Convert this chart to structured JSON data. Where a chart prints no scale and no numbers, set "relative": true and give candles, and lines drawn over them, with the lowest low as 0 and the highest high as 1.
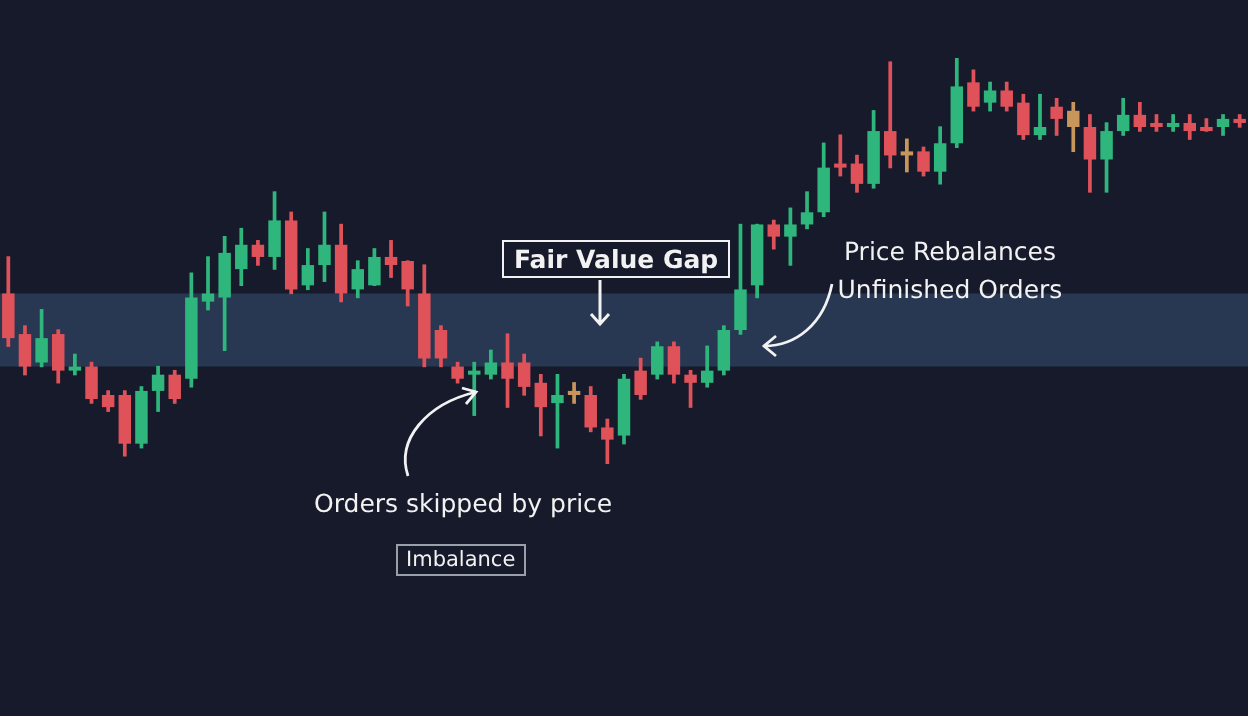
{
  "chart_data": {
    "type": "candlestick",
    "relative": true,
    "categories": [
      null,
      null,
      null,
      null,
      null,
      null,
      null,
      null,
      null,
      null,
      null,
      null,
      null,
      null,
      null,
      null,
      null,
      null,
      null,
      null,
      null,
      null,
      null,
      null,
      null,
      null,
      null,
      null,
      null,
      null,
      null,
      null,
      null,
      null,
      null,
      null,
      null,
      null,
      null,
      null,
      null,
      null,
      null,
      null,
      null,
      null,
      null,
      null,
      null,
      null,
      null,
      null,
      null,
      null,
      null,
      null,
      null,
      null,
      null,
      null,
      null,
      null,
      null,
      null,
      null,
      null,
      null,
      null,
      null,
      null,
      null,
      null,
      null,
      null,
      null
    ],
    "ohlc": [
      [
        0.42,
        0.51,
        0.29,
        0.31
      ],
      [
        0.32,
        0.34,
        0.22,
        0.24
      ],
      [
        0.25,
        0.38,
        0.24,
        0.31
      ],
      [
        0.32,
        0.33,
        0.2,
        0.23
      ],
      [
        0.23,
        0.27,
        0.22,
        0.24
      ],
      [
        0.24,
        0.25,
        0.15,
        0.16
      ],
      [
        0.17,
        0.18,
        0.13,
        0.14
      ],
      [
        0.17,
        0.18,
        0.02,
        0.05
      ],
      [
        0.05,
        0.19,
        0.04,
        0.18
      ],
      [
        0.18,
        0.24,
        0.13,
        0.22
      ],
      [
        0.22,
        0.23,
        0.15,
        0.16
      ],
      [
        0.21,
        0.47,
        0.19,
        0.41
      ],
      [
        0.4,
        0.51,
        0.38,
        0.42
      ],
      [
        0.41,
        0.56,
        0.28,
        0.52
      ],
      [
        0.48,
        0.58,
        0.44,
        0.54
      ],
      [
        0.54,
        0.55,
        0.49,
        0.51
      ],
      [
        0.51,
        0.67,
        0.48,
        0.6
      ],
      [
        0.6,
        0.62,
        0.42,
        0.43
      ],
      [
        0.44,
        0.53,
        0.43,
        0.49
      ],
      [
        0.49,
        0.62,
        0.45,
        0.54
      ],
      [
        0.54,
        0.59,
        0.4,
        0.42
      ],
      [
        0.43,
        0.5,
        0.41,
        0.48
      ],
      [
        0.44,
        0.53,
        0.44,
        0.51
      ],
      [
        0.51,
        0.55,
        0.46,
        0.49
      ],
      [
        0.5,
        0.5,
        0.39,
        0.43
      ],
      [
        0.42,
        0.49,
        0.24,
        0.26
      ],
      [
        0.33,
        0.34,
        0.24,
        0.26
      ],
      [
        0.24,
        0.25,
        0.2,
        0.21
      ],
      [
        0.22,
        0.25,
        0.12,
        0.23
      ],
      [
        0.22,
        0.28,
        0.21,
        0.25
      ],
      [
        0.25,
        0.32,
        0.14,
        0.21
      ],
      [
        0.25,
        0.27,
        0.17,
        0.19
      ],
      [
        0.2,
        0.22,
        0.07,
        0.14
      ],
      [
        0.15,
        0.22,
        0.04,
        0.17
      ],
      [
        0.18,
        0.2,
        0.15,
        0.17
      ],
      [
        0.17,
        0.19,
        0.08,
        0.09
      ],
      [
        0.09,
        0.11,
        0,
        0.06
      ],
      [
        0.07,
        0.22,
        0.05,
        0.21
      ],
      [
        0.23,
        0.26,
        0.16,
        0.17
      ],
      [
        0.22,
        0.3,
        0.21,
        0.29
      ],
      [
        0.29,
        0.3,
        0.2,
        0.22
      ],
      [
        0.22,
        0.23,
        0.14,
        0.2
      ],
      [
        0.2,
        0.29,
        0.19,
        0.23
      ],
      [
        0.23,
        0.34,
        0.22,
        0.33
      ],
      [
        0.33,
        0.59,
        0.32,
        0.43
      ],
      [
        0.44,
        0.59,
        0.41,
        0.59
      ],
      [
        0.59,
        0.6,
        0.53,
        0.56
      ],
      [
        0.56,
        0.63,
        0.49,
        0.59
      ],
      [
        0.59,
        0.67,
        0.58,
        0.62
      ],
      [
        0.62,
        0.79,
        0.61,
        0.73
      ],
      [
        0.74,
        0.81,
        0.71,
        0.73
      ],
      [
        0.74,
        0.76,
        0.67,
        0.69
      ],
      [
        0.69,
        0.87,
        0.68,
        0.82
      ],
      [
        0.82,
        0.99,
        0.73,
        0.76
      ],
      [
        0.77,
        0.8,
        0.72,
        0.76
      ],
      [
        0.77,
        0.78,
        0.71,
        0.72
      ],
      [
        0.72,
        0.83,
        0.69,
        0.79
      ],
      [
        0.79,
        1,
        0.78,
        0.93
      ],
      [
        0.94,
        0.97,
        0.87,
        0.88
      ],
      [
        0.89,
        0.94,
        0.87,
        0.92
      ],
      [
        0.92,
        0.94,
        0.87,
        0.88
      ],
      [
        0.89,
        0.91,
        0.8,
        0.81
      ],
      [
        0.81,
        0.91,
        0.8,
        0.83
      ],
      [
        0.88,
        0.9,
        0.81,
        0.85
      ],
      [
        0.87,
        0.89,
        0.77,
        0.83
      ],
      [
        0.83,
        0.86,
        0.67,
        0.75
      ],
      [
        0.75,
        0.84,
        0.67,
        0.82
      ],
      [
        0.82,
        0.9,
        0.81,
        0.86
      ],
      [
        0.86,
        0.89,
        0.82,
        0.83
      ],
      [
        0.84,
        0.86,
        0.82,
        0.83
      ],
      [
        0.83,
        0.86,
        0.82,
        0.84
      ],
      [
        0.84,
        0.86,
        0.8,
        0.82
      ],
      [
        0.83,
        0.85,
        0.82,
        0.82
      ],
      [
        0.83,
        0.86,
        0.81,
        0.85
      ],
      [
        0.85,
        0.86,
        0.83,
        0.84
      ]
    ],
    "colors": [
      "#e0525a",
      "#e0525a",
      "#2fb67c",
      "#e0525a",
      "#2fb67c",
      "#e0525a",
      "#e0525a",
      "#e0525a",
      "#2fb67c",
      "#2fb67c",
      "#e0525a",
      "#2fb67c",
      "#2fb67c",
      "#2fb67c",
      "#2fb67c",
      "#e0525a",
      "#2fb67c",
      "#e0525a",
      "#2fb67c",
      "#2fb67c",
      "#e0525a",
      "#2fb67c",
      "#2fb67c",
      "#e0525a",
      "#e0525a",
      "#e0525a",
      "#e0525a",
      "#e0525a",
      "#2fb67c",
      "#2fb67c",
      "#e0525a",
      "#e0525a",
      "#e0525a",
      "#2fb67c",
      "#c8955a",
      "#e0525a",
      "#e0525a",
      "#2fb67c",
      "#e0525a",
      "#2fb67c",
      "#e0525a",
      "#e0525a",
      "#2fb67c",
      "#2fb67c",
      "#2fb67c",
      "#2fb67c",
      "#e0525a",
      "#2fb67c",
      "#2fb67c",
      "#2fb67c",
      "#e0525a",
      "#e0525a",
      "#2fb67c",
      "#e0525a",
      "#c8955a",
      "#e0525a",
      "#2fb67c",
      "#2fb67c",
      "#e0525a",
      "#2fb67c",
      "#e0525a",
      "#e0525a",
      "#2fb67c",
      "#e0525a",
      "#c8955a",
      "#e0525a",
      "#2fb67c",
      "#2fb67c",
      "#e0525a",
      "#e0525a",
      "#2fb67c",
      "#e0525a",
      "#e0525a",
      "#2fb67c",
      "#e0525a"
    ],
    "bands": [
      {
        "axis": "y",
        "from": 0.24,
        "to": 0.42,
        "label": "Fair Value Gap",
        "color": "#5b87b8"
      }
    ],
    "annotations": [
      "Price Rebalances Unfinished Orders",
      "Orders skipped by price",
      "Imbalance"
    ]
  }
}
